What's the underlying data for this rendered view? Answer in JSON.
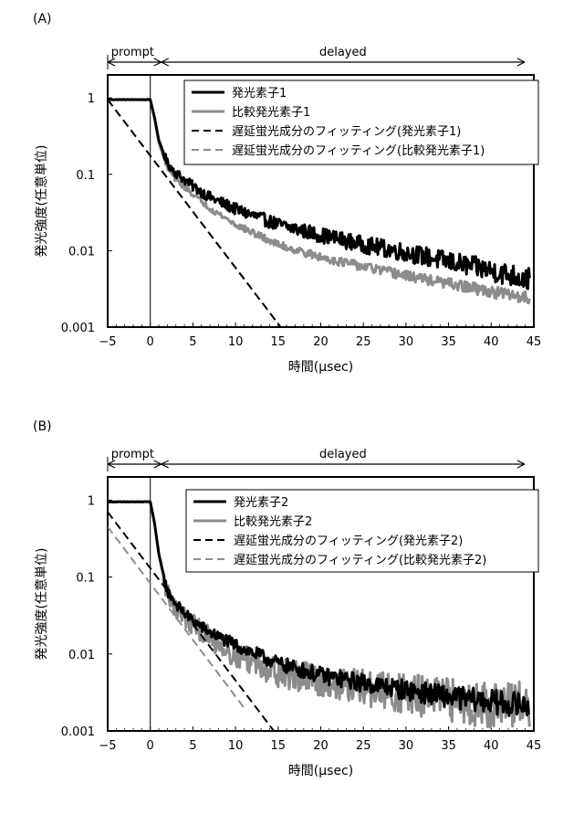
{
  "chart_data": [
    {
      "type": "line",
      "panel_label": "(A)",
      "region_labels": {
        "prompt": "prompt",
        "delayed": "delayed"
      },
      "xlabel": "時間(μsec)",
      "ylabel": "発光強度(任意単位)",
      "xlim": [
        -5,
        45
      ],
      "ylim": [
        0.001,
        2
      ],
      "yscale": "log",
      "x_ticks": [
        -5,
        0,
        5,
        10,
        15,
        20,
        25,
        30,
        35,
        40,
        45
      ],
      "x_tick_labels": [
        "−5",
        "0",
        "5",
        "10",
        "15",
        "20",
        "25",
        "30",
        "35",
        "40",
        "45"
      ],
      "y_ticks": [
        1,
        0.1,
        0.01,
        0.001
      ],
      "y_tick_labels": [
        "1",
        "0.1",
        "0.01",
        "0.001"
      ],
      "legend_position": "top-right",
      "series": [
        {
          "name": "発光素子1",
          "color": "#000000",
          "dash": "solid",
          "width": 3,
          "noise": 0.055,
          "x": [
            -5,
            0,
            0.5,
            1,
            2,
            3,
            4,
            5,
            7,
            10,
            15,
            20,
            25,
            30,
            35,
            40,
            44.5
          ],
          "y": [
            0.95,
            0.95,
            0.55,
            0.28,
            0.14,
            0.105,
            0.085,
            0.07,
            0.05,
            0.035,
            0.022,
            0.016,
            0.012,
            0.0095,
            0.0072,
            0.0055,
            0.0042
          ]
        },
        {
          "name": "比較発光素子1",
          "color": "#8c8c8c",
          "dash": "solid",
          "width": 3,
          "noise": 0.03,
          "x": [
            -5,
            0,
            0.5,
            1,
            2,
            3,
            4,
            5,
            7,
            10,
            15,
            20,
            25,
            30,
            35,
            40,
            44.5
          ],
          "y": [
            0.95,
            0.95,
            0.55,
            0.26,
            0.12,
            0.085,
            0.068,
            0.055,
            0.036,
            0.022,
            0.012,
            0.0082,
            0.0062,
            0.0047,
            0.0037,
            0.0029,
            0.0024
          ]
        },
        {
          "name": "遅延蛍光成分のフィッティング(発光素子1)",
          "color": "#000000",
          "dash": "dashed",
          "width": 2,
          "noise": 0,
          "x": [
            -5,
            15.3
          ],
          "y": [
            0.95,
            0.001
          ]
        },
        {
          "name": "遅延蛍光成分のフィッティング(比較発光素子1)",
          "color": "#8c8c8c",
          "dash": "dashed",
          "width": 2,
          "noise": 0,
          "x": [
            -5,
            15.3
          ],
          "y": [
            0.95,
            0.001
          ]
        }
      ]
    },
    {
      "type": "line",
      "panel_label": "(B)",
      "region_labels": {
        "prompt": "prompt",
        "delayed": "delayed"
      },
      "xlabel": "時間(μsec)",
      "ylabel": "発光強度(任意単位)",
      "xlim": [
        -5,
        45
      ],
      "ylim": [
        0.001,
        2
      ],
      "yscale": "log",
      "x_ticks": [
        -5,
        0,
        5,
        10,
        15,
        20,
        25,
        30,
        35,
        40,
        45
      ],
      "x_tick_labels": [
        "−5",
        "0",
        "5",
        "10",
        "15",
        "20",
        "25",
        "30",
        "35",
        "40",
        "45"
      ],
      "y_ticks": [
        1,
        0.1,
        0.01,
        0.001
      ],
      "y_tick_labels": [
        "1",
        "0.1",
        "0.01",
        "0.001"
      ],
      "legend_position": "top-right",
      "series": [
        {
          "name": "発光素子2",
          "color": "#000000",
          "dash": "solid",
          "width": 3,
          "noise": 0.06,
          "x": [
            -5,
            0,
            0.5,
            1,
            2,
            3,
            4,
            5,
            7,
            10,
            15,
            20,
            25,
            30,
            35,
            40,
            44.5
          ],
          "y": [
            0.95,
            0.95,
            0.5,
            0.2,
            0.065,
            0.045,
            0.034,
            0.027,
            0.019,
            0.013,
            0.0075,
            0.0053,
            0.0042,
            0.0034,
            0.0028,
            0.0024,
            0.0021
          ]
        },
        {
          "name": "比較発光素子2",
          "color": "#8c8c8c",
          "dash": "solid",
          "width": 3,
          "noise": 0.12,
          "x": [
            -5,
            0,
            0.5,
            1,
            2,
            3,
            4,
            5,
            7,
            10,
            15,
            20,
            25,
            30,
            35,
            40,
            44.5
          ],
          "y": [
            0.95,
            0.95,
            0.5,
            0.2,
            0.06,
            0.04,
            0.03,
            0.024,
            0.016,
            0.01,
            0.0058,
            0.0044,
            0.0036,
            0.003,
            0.0025,
            0.0022,
            0.002
          ]
        },
        {
          "name": "遅延蛍光成分のフィッティング(発光素子2)",
          "color": "#000000",
          "dash": "dashed",
          "width": 2,
          "noise": 0,
          "x": [
            -5,
            14.5
          ],
          "y": [
            0.7,
            0.001
          ]
        },
        {
          "name": "遅延蛍光成分のフィッティング(比較発光素子2)",
          "color": "#8c8c8c",
          "dash": "dashed",
          "width": 2,
          "noise": 0,
          "x": [
            -5,
            11
          ],
          "y": [
            0.45,
            0.002
          ]
        }
      ]
    }
  ]
}
